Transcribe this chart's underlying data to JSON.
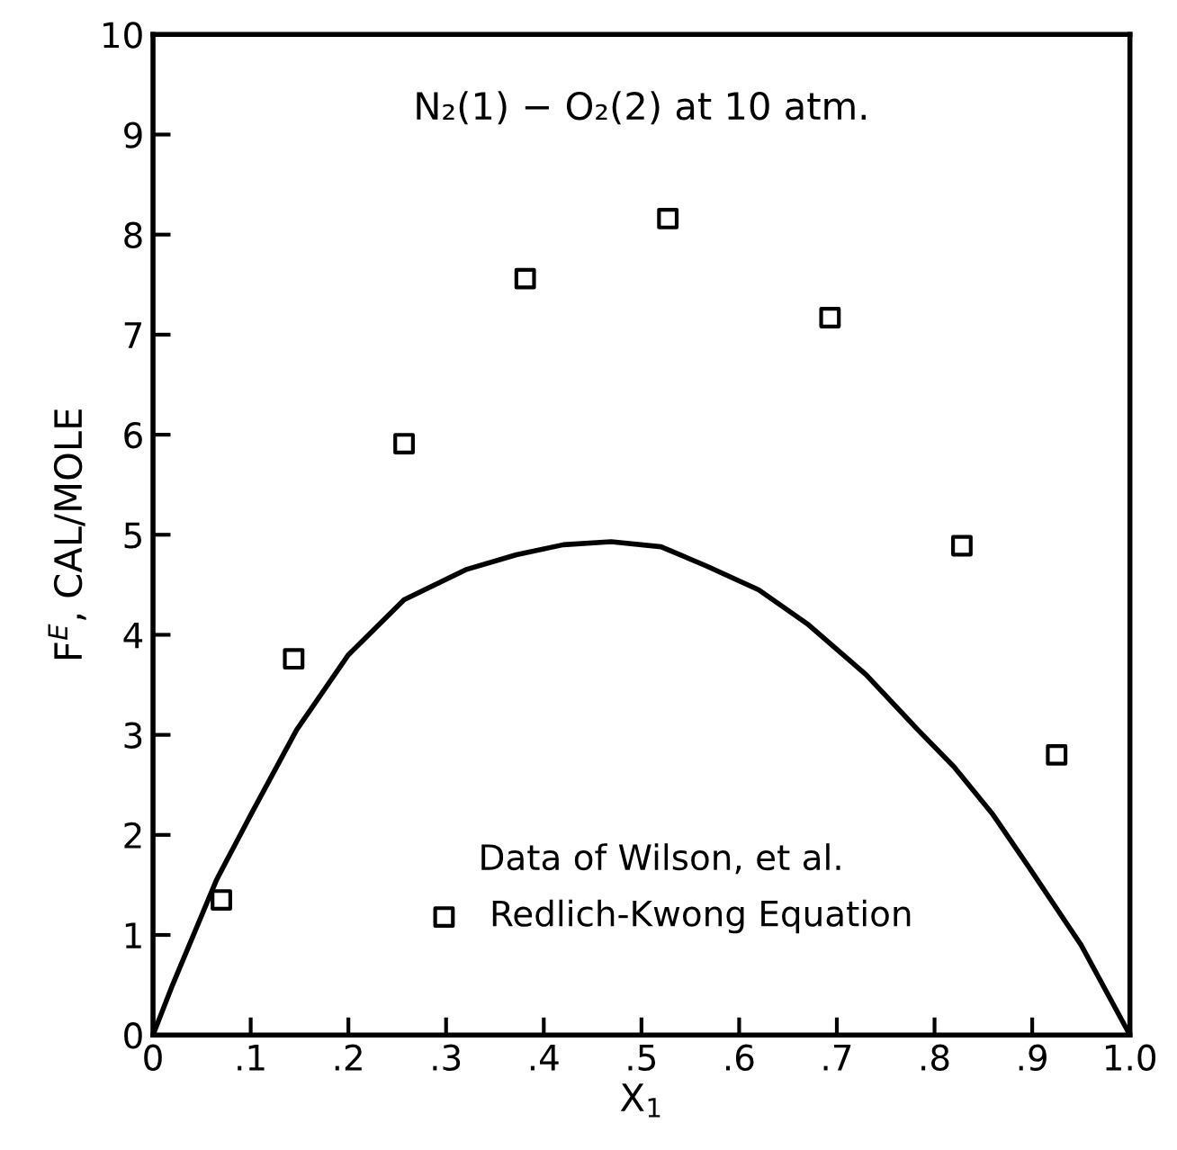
{
  "chart_data": {
    "type": "scatter",
    "title": "N₂(1) − O₂(2) at 10 atm.",
    "xlabel": "X$_{1}$",
    "ylabel": "F$^{E}$, CAL/MOLE",
    "annotations": [
      "Data of Wilson, et al."
    ],
    "series": [
      {
        "name": "Redlich-Kwong Equation",
        "color": "#000000",
        "marker": "square",
        "x": [
          0.07,
          0.144,
          0.257,
          0.381,
          0.527,
          0.693,
          0.828,
          0.925
        ],
        "values": [
          1.35,
          3.76,
          5.91,
          7.56,
          8.16,
          7.17,
          4.89,
          2.8
        ]
      },
      {
        "type": "line",
        "color": "#000000",
        "line_style": "solid",
        "x": [
          0,
          0.02,
          0.065,
          0.1,
          0.147,
          0.2,
          0.257,
          0.32,
          0.372,
          0.42,
          0.469,
          0.52,
          0.566,
          0.62,
          0.671,
          0.73,
          0.783,
          0.82,
          0.86,
          0.895,
          0.95,
          1.0
        ],
        "values": [
          0,
          0.5,
          1.55,
          2.2,
          3.05,
          3.8,
          4.35,
          4.65,
          4.8,
          4.9,
          4.93,
          4.88,
          4.69,
          4.45,
          4.1,
          3.6,
          3.05,
          2.68,
          2.2,
          1.7,
          0.9,
          0
        ]
      }
    ],
    "xlim": [
      0,
      1.0
    ],
    "ylim": [
      0,
      10
    ],
    "xticks": [
      0,
      {
        "value": 0.1,
        "label": ".1"
      },
      {
        "value": 0.2,
        "label": ".2"
      },
      {
        "value": 0.3,
        "label": ".3"
      },
      {
        "value": 0.4,
        "label": ".4"
      },
      {
        "value": 0.5,
        "label": ".5"
      },
      {
        "value": 0.6,
        "label": ".6"
      },
      {
        "value": 0.7,
        "label": ".7"
      },
      {
        "value": 0.8,
        "label": ".8"
      },
      {
        "value": 0.9,
        "label": ".9"
      },
      {
        "value": 1.0,
        "label": "1.0"
      }
    ],
    "yticks": [
      0,
      1,
      2,
      3,
      4,
      5,
      6,
      7,
      8,
      9,
      10
    ],
    "grid": false,
    "legend": "bottom"
  }
}
